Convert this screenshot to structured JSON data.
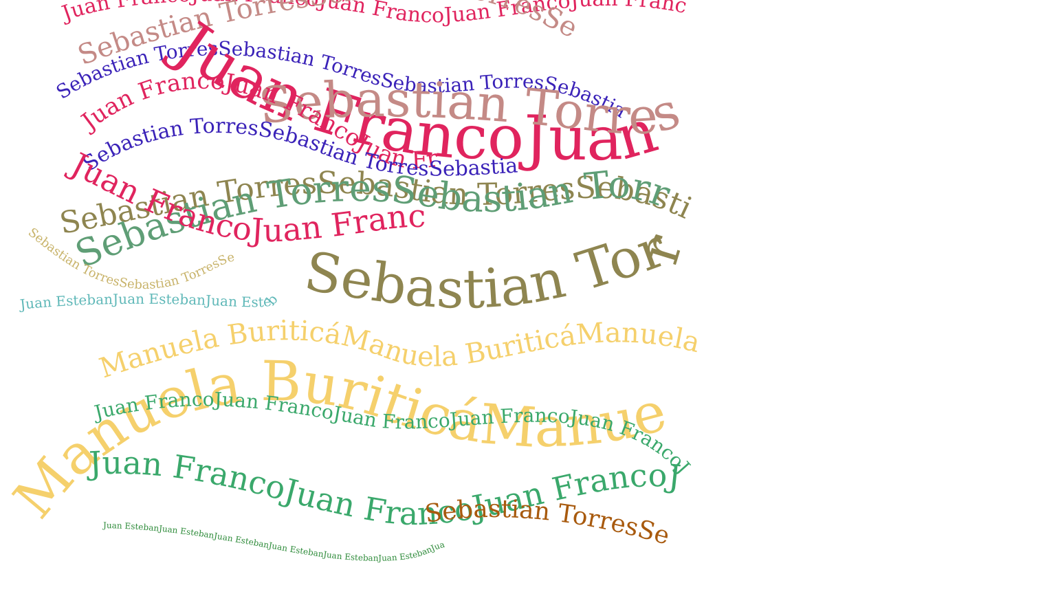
{
  "names": {
    "juan_franco": "Juan Franco",
    "sebastian_torres": "Sebastian Torres",
    "manuela_buritica": "Manuela Buriticá",
    "esteban": "Juan Esteban"
  },
  "colors": {
    "crimson": "#e0245e",
    "rose_taupe": "#c48a86",
    "indigo": "#3a22b8",
    "olive": "#8e8550",
    "sage": "#5f9e76",
    "gold": "#f5d06c",
    "tan": "#c8b36a",
    "teal": "#5fb8b8",
    "green": "#3aa86b",
    "brown": "#a85a0e",
    "forest": "#2e8b3a"
  },
  "strands": [
    {
      "name": "juan-franco-crimson-top",
      "text_ref": "juan_franco",
      "repeat": 6,
      "color": "crimson"
    },
    {
      "name": "sebastian-torres-rose-top",
      "text_ref": "sebastian_torres",
      "repeat": 5,
      "color": "rose_taupe"
    },
    {
      "name": "sebastian-torres-indigo",
      "text_ref": "sebastian_torres",
      "repeat": 5,
      "color": "indigo"
    },
    {
      "name": "juan-franco-crimson-big",
      "text_ref": "juan_franco",
      "repeat": 4,
      "color": "crimson"
    },
    {
      "name": "sebastian-torres-rose-big",
      "text_ref": "sebastian_torres",
      "repeat": 3,
      "color": "rose_taupe"
    },
    {
      "name": "juan-franco-crimson-mid",
      "text_ref": "juan_franco",
      "repeat": 5,
      "color": "crimson"
    },
    {
      "name": "sebastian-torres-indigo-lower",
      "text_ref": "sebastian_torres",
      "repeat": 5,
      "color": "indigo"
    },
    {
      "name": "sebastian-torres-olive",
      "text_ref": "sebastian_torres",
      "repeat": 5,
      "color": "olive"
    },
    {
      "name": "sebastian-torres-sage",
      "text_ref": "sebastian_torres",
      "repeat": 6,
      "color": "sage"
    },
    {
      "name": "juan-franco-crimson-low",
      "text_ref": "juan_franco",
      "repeat": 4,
      "color": "crimson"
    },
    {
      "name": "sebastian-torres-olive-big",
      "text_ref": "sebastian_torres",
      "repeat": 3,
      "color": "olive"
    },
    {
      "name": "sebastian-torres-tan",
      "text_ref": "sebastian_torres",
      "repeat": 10,
      "color": "tan"
    },
    {
      "name": "juan-esteban-teal",
      "text_ref": "esteban",
      "repeat": 8,
      "color": "teal"
    },
    {
      "name": "manuela-buritica-gold",
      "text_ref": "manuela_buritica",
      "repeat": 5,
      "color": "gold"
    },
    {
      "name": "manuela-buritica-gold-big",
      "text_ref": "manuela_buritica",
      "repeat": 3,
      "color": "gold"
    },
    {
      "name": "juan-franco-green",
      "text_ref": "juan_franco",
      "repeat": 7,
      "color": "green"
    },
    {
      "name": "juan-franco-green-big",
      "text_ref": "juan_franco",
      "repeat": 5,
      "color": "green"
    },
    {
      "name": "sebastian-torres-brown",
      "text_ref": "sebastian_torres",
      "repeat": 5,
      "color": "brown"
    },
    {
      "name": "juan-esteban-forest",
      "text_ref": "esteban",
      "repeat": 12,
      "color": "forest"
    }
  ]
}
